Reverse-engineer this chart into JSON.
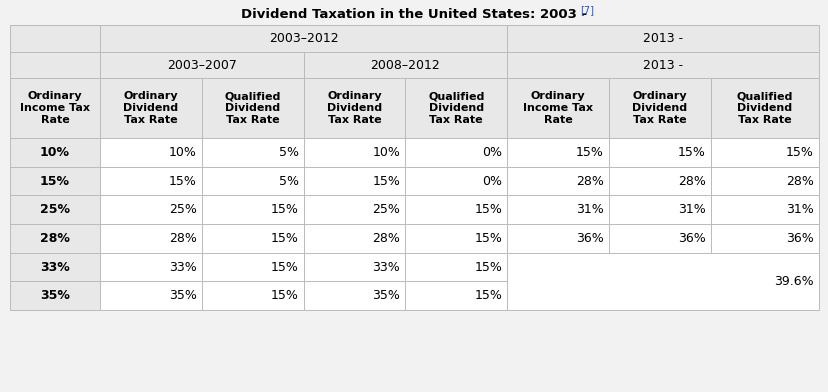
{
  "title": "Dividend Taxation in the United States: 2003 -",
  "title_superscript": "[7]",
  "background_color": "#f2f2f2",
  "header_bg": "#e8e8e8",
  "cell_bg_white": "#ffffff",
  "border_color": "#bbbbbb",
  "col0_bg": "#e8e8e8",
  "col_headers": [
    "Ordinary\nIncome Tax\nRate",
    "Ordinary\nDividend\nTax Rate",
    "Qualified\nDividend\nTax Rate",
    "Ordinary\nDividend\nTax Rate",
    "Qualified\nDividend\nTax Rate",
    "Ordinary\nIncome Tax\nRate",
    "Ordinary\nDividend\nTax Rate",
    "Qualified\nDividend\nTax Rate"
  ],
  "rows": [
    [
      "10%",
      "10%",
      "5%",
      "10%",
      "0%",
      "15%",
      "15%",
      "15%"
    ],
    [
      "15%",
      "15%",
      "5%",
      "15%",
      "0%",
      "28%",
      "28%",
      "28%"
    ],
    [
      "25%",
      "25%",
      "15%",
      "25%",
      "15%",
      "31%",
      "31%",
      "31%"
    ],
    [
      "28%",
      "28%",
      "15%",
      "28%",
      "15%",
      "36%",
      "36%",
      "36%"
    ],
    [
      "33%",
      "33%",
      "15%",
      "33%",
      "15%",
      "",
      "",
      ""
    ],
    [
      "35%",
      "35%",
      "15%",
      "35%",
      "15%",
      "",
      "",
      ""
    ]
  ],
  "figsize": [
    8.29,
    3.92
  ],
  "dpi": 100
}
